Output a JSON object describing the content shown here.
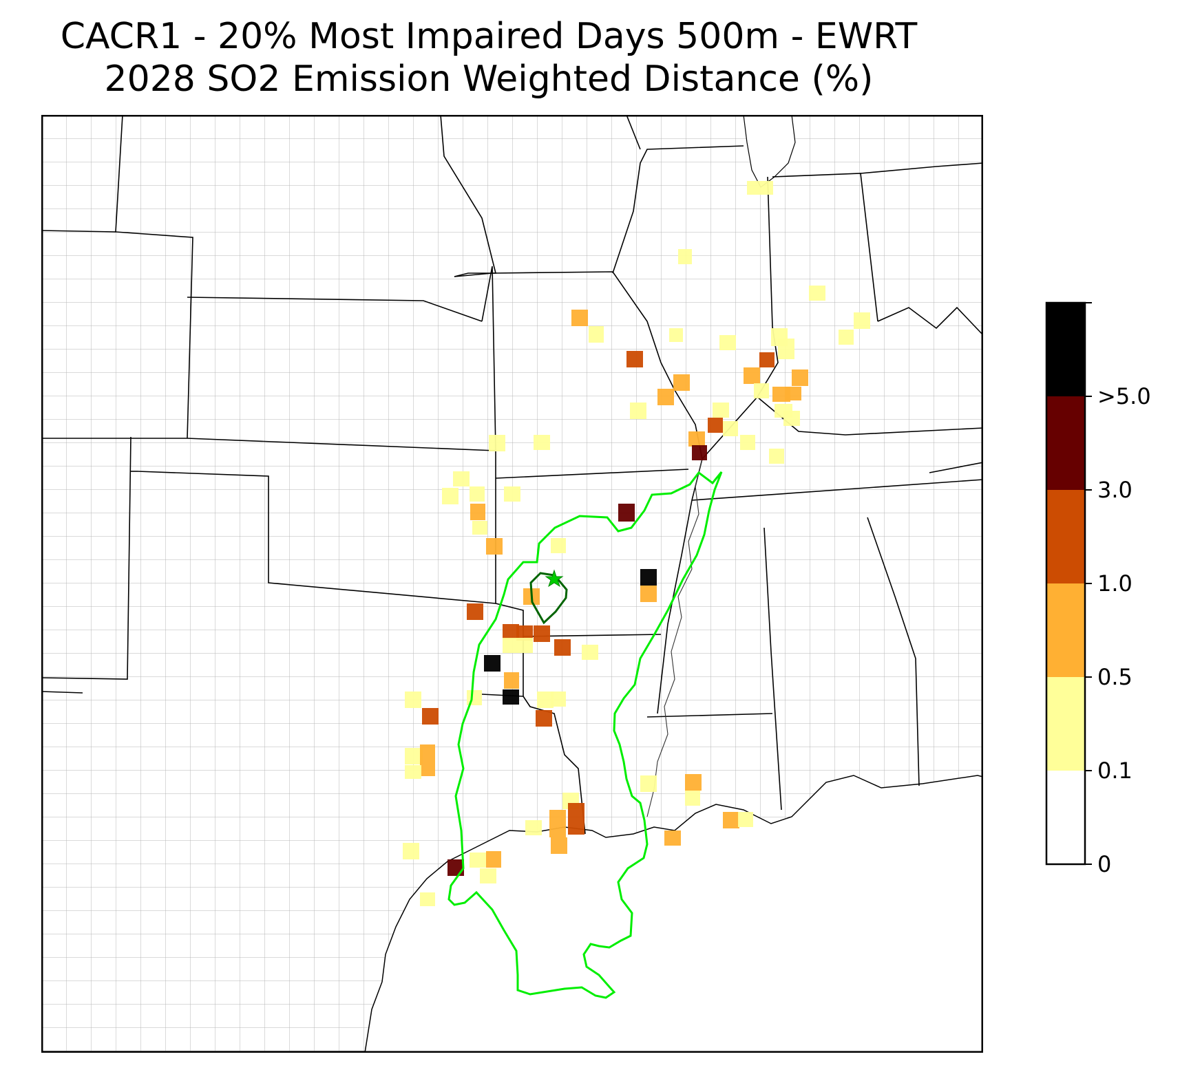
{
  "title": {
    "line1": "CACR1 - 20% Most Impaired Days 500m - EWRT",
    "line2": "2028 SO2 Emission Weighted Distance (%)"
  },
  "colorbar": {
    "bins": [
      {
        "label": "0",
        "color": "#ffffff"
      },
      {
        "label": "0.1",
        "color": "#ffff99"
      },
      {
        "label": "0.5",
        "color": "#ffb033"
      },
      {
        "label": "1.0",
        "color": "#cc4c02"
      },
      {
        "label": "3.0",
        "color": "#660000"
      },
      {
        "label": ">5.0",
        "color": "#000000"
      }
    ]
  },
  "colors": {
    "trajectory_outer": "#00ee00",
    "trajectory_inner": "#006400",
    "site_marker": "#00cc00",
    "county_lines": "#999999",
    "state_lines": "#000000"
  },
  "map": {
    "region": "South-Central United States",
    "site_marker_icon": "star-icon"
  }
}
